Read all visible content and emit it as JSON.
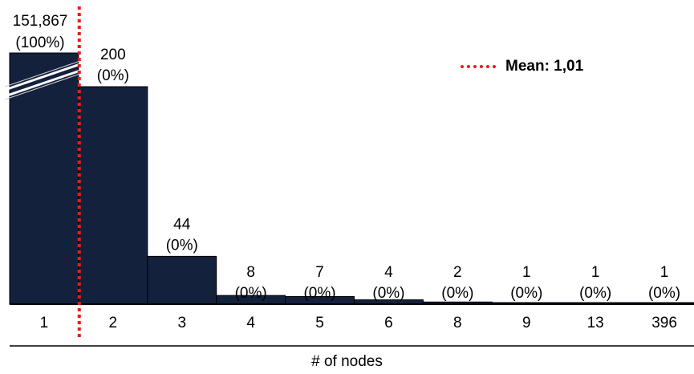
{
  "chart_data": {
    "type": "bar",
    "categories": [
      "1",
      "2",
      "3",
      "4",
      "5",
      "6",
      "8",
      "9",
      "13",
      "396"
    ],
    "values": [
      151867,
      200,
      44,
      8,
      7,
      4,
      2,
      1,
      1,
      1
    ],
    "value_labels": [
      "151,867",
      "200",
      "44",
      "8",
      "7",
      "4",
      "2",
      "1",
      "1",
      "1"
    ],
    "percent_labels": [
      "(100%)",
      "(0%)",
      "(0%)",
      "(0%)",
      "(0%)",
      "(0%)",
      "(0%)",
      "(0%)",
      "(0%)",
      "(0%)"
    ],
    "axis_break": {
      "on_category": "1"
    },
    "xlabel": "# of nodes",
    "ylabel": "",
    "mean": {
      "label": "Mean: 1,01",
      "value": 1.01,
      "color": "#e02020"
    },
    "legend_position": "top-right",
    "bar_color": "#14213d",
    "grid": false
  }
}
